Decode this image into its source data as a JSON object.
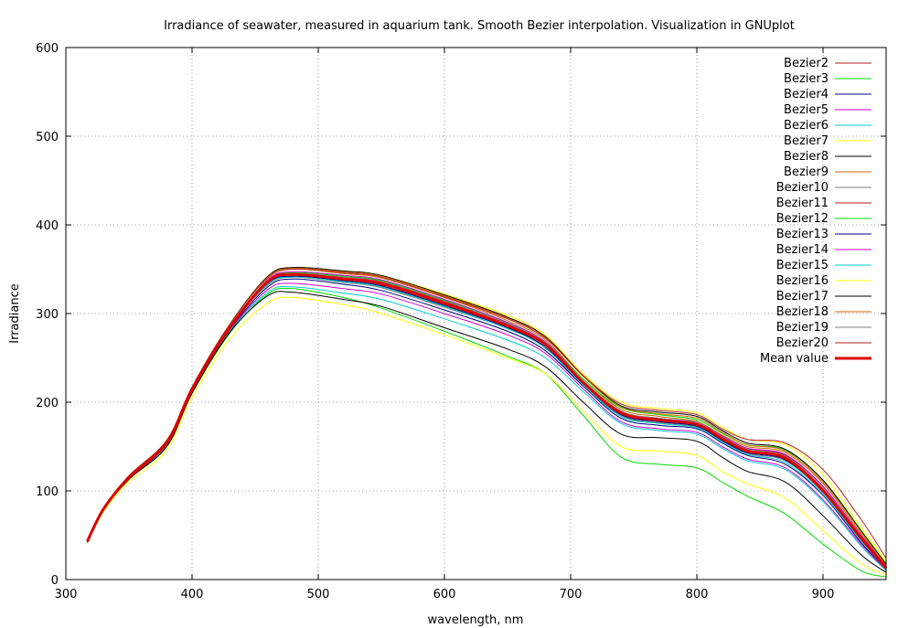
{
  "chart_data": {
    "type": "line",
    "title": "Irradiance of seawater, measured in aquarium tank. Smooth Bezier interpolation. Visualization in GNUplot",
    "xlabel": "wavelength, nm",
    "ylabel": "Irradiance",
    "xlim": [
      300,
      950
    ],
    "ylim": [
      0,
      600
    ],
    "xticks": [
      "300",
      "400",
      "500",
      "600",
      "700",
      "800",
      "900"
    ],
    "yticks": [
      "0",
      "100",
      "200",
      "300",
      "400",
      "500",
      "600"
    ],
    "grid": true,
    "legend_position": "top-right",
    "x": [
      317,
      330,
      350,
      380,
      400,
      430,
      460,
      480,
      520,
      550,
      600,
      650,
      680,
      710,
      740,
      770,
      800,
      820,
      840,
      870,
      900,
      930,
      950
    ],
    "series": [
      {
        "name": "Bezier2",
        "color": "#b22222",
        "width": 1,
        "values": [
          43,
          80,
          115,
          155,
          215,
          285,
          333,
          342,
          338,
          332,
          310,
          285,
          262,
          218,
          187,
          179,
          174,
          160,
          148,
          140,
          105,
          50,
          18
        ]
      },
      {
        "name": "Bezier3",
        "color": "#00dd00",
        "width": 1,
        "values": [
          42,
          79,
          113,
          150,
          210,
          278,
          322,
          328,
          318,
          306,
          280,
          252,
          232,
          185,
          138,
          130,
          126,
          110,
          94,
          74,
          40,
          10,
          3
        ]
      },
      {
        "name": "Bezier4",
        "color": "#000080",
        "width": 1,
        "values": [
          43,
          80,
          115,
          153,
          213,
          282,
          330,
          339,
          333,
          326,
          304,
          280,
          258,
          218,
          182,
          174,
          170,
          154,
          140,
          130,
          95,
          42,
          12
        ]
      },
      {
        "name": "Bezier5",
        "color": "#cc00cc",
        "width": 1,
        "values": [
          43,
          80,
          114,
          152,
          212,
          281,
          327,
          334,
          328,
          322,
          300,
          276,
          255,
          215,
          178,
          170,
          166,
          150,
          136,
          126,
          90,
          40,
          11
        ]
      },
      {
        "name": "Bezier6",
        "color": "#00cccc",
        "width": 1,
        "values": [
          42,
          79,
          113,
          151,
          211,
          280,
          324,
          330,
          323,
          316,
          294,
          270,
          250,
          212,
          176,
          168,
          164,
          148,
          134,
          124,
          88,
          38,
          10
        ]
      },
      {
        "name": "Bezier7",
        "color": "#ffff00",
        "width": 1,
        "values": [
          41,
          77,
          110,
          146,
          205,
          272,
          312,
          318,
          310,
          300,
          276,
          250,
          232,
          190,
          150,
          145,
          140,
          122,
          108,
          92,
          55,
          18,
          5
        ]
      },
      {
        "name": "Bezier8",
        "color": "#000000",
        "width": 1,
        "values": [
          42,
          79,
          113,
          150,
          210,
          279,
          320,
          324,
          316,
          308,
          284,
          260,
          240,
          200,
          164,
          160,
          156,
          138,
          122,
          110,
          72,
          28,
          8
        ]
      },
      {
        "name": "Bezier9",
        "color": "#cc6600",
        "width": 1,
        "values": [
          44,
          81,
          117,
          157,
          217,
          288,
          340,
          350,
          345,
          340,
          318,
          292,
          270,
          226,
          192,
          184,
          178,
          163,
          150,
          143,
          108,
          52,
          16
        ]
      },
      {
        "name": "Bezier10",
        "color": "#808080",
        "width": 1,
        "values": [
          43,
          80,
          115,
          154,
          214,
          284,
          332,
          341,
          335,
          329,
          307,
          283,
          261,
          220,
          185,
          177,
          172,
          156,
          142,
          134,
          98,
          45,
          13
        ]
      },
      {
        "name": "Bezier11",
        "color": "#b22222",
        "width": 1,
        "values": [
          43,
          80,
          115,
          154,
          214,
          284,
          336,
          345,
          341,
          336,
          314,
          288,
          266,
          222,
          188,
          180,
          175,
          160,
          146,
          138,
          102,
          48,
          14
        ]
      },
      {
        "name": "Bezier12",
        "color": "#00dd00",
        "width": 1,
        "values": [
          43,
          80,
          115,
          155,
          215,
          286,
          337,
          346,
          342,
          337,
          315,
          290,
          268,
          226,
          194,
          186,
          180,
          165,
          152,
          146,
          112,
          56,
          18
        ]
      },
      {
        "name": "Bezier13",
        "color": "#000080",
        "width": 1,
        "values": [
          43,
          80,
          115,
          154,
          214,
          284,
          334,
          342,
          337,
          331,
          309,
          284,
          262,
          221,
          186,
          178,
          173,
          157,
          143,
          135,
          99,
          46,
          13
        ]
      },
      {
        "name": "Bezier14",
        "color": "#cc00cc",
        "width": 1,
        "values": [
          43,
          80,
          115,
          154,
          214,
          284,
          338,
          347,
          343,
          338,
          316,
          290,
          268,
          224,
          190,
          182,
          177,
          162,
          148,
          141,
          105,
          50,
          15
        ]
      },
      {
        "name": "Bezier15",
        "color": "#00cccc",
        "width": 1,
        "values": [
          43,
          80,
          115,
          154,
          214,
          284,
          333,
          341,
          336,
          330,
          308,
          283,
          261,
          219,
          184,
          176,
          171,
          155,
          141,
          132,
          96,
          44,
          12
        ]
      },
      {
        "name": "Bezier16",
        "color": "#ffff00",
        "width": 1,
        "values": [
          44,
          81,
          117,
          157,
          217,
          288,
          342,
          352,
          348,
          343,
          322,
          298,
          276,
          232,
          200,
          193,
          188,
          172,
          158,
          152,
          118,
          60,
          20
        ]
      },
      {
        "name": "Bezier17",
        "color": "#000000",
        "width": 1,
        "values": [
          44,
          81,
          117,
          157,
          217,
          288,
          342,
          352,
          348,
          343,
          321,
          296,
          274,
          230,
          196,
          189,
          184,
          168,
          154,
          147,
          112,
          55,
          17
        ]
      },
      {
        "name": "Bezier18",
        "color": "#cc6600",
        "width": 1,
        "values": [
          44,
          81,
          117,
          157,
          217,
          288,
          341,
          351,
          347,
          342,
          320,
          295,
          273,
          229,
          195,
          187,
          182,
          166,
          152,
          145,
          110,
          54,
          16
        ]
      },
      {
        "name": "Bezier19",
        "color": "#808080",
        "width": 1,
        "values": [
          43,
          80,
          115,
          155,
          215,
          286,
          336,
          345,
          341,
          336,
          314,
          289,
          267,
          224,
          190,
          182,
          177,
          161,
          147,
          139,
          103,
          49,
          14
        ]
      },
      {
        "name": "Bezier20",
        "color": "#b22222",
        "width": 1,
        "values": [
          44,
          81,
          117,
          157,
          217,
          288,
          340,
          350,
          346,
          341,
          319,
          294,
          272,
          230,
          198,
          191,
          186,
          170,
          158,
          154,
          124,
          68,
          24
        ]
      },
      {
        "name": "Mean value",
        "color": "#dd0000",
        "width": 3,
        "values": [
          43,
          80,
          115,
          154,
          214,
          284,
          336,
          344,
          339,
          334,
          312,
          286,
          265,
          222,
          188,
          180,
          175,
          159,
          145,
          137,
          100,
          47,
          13
        ]
      }
    ]
  }
}
